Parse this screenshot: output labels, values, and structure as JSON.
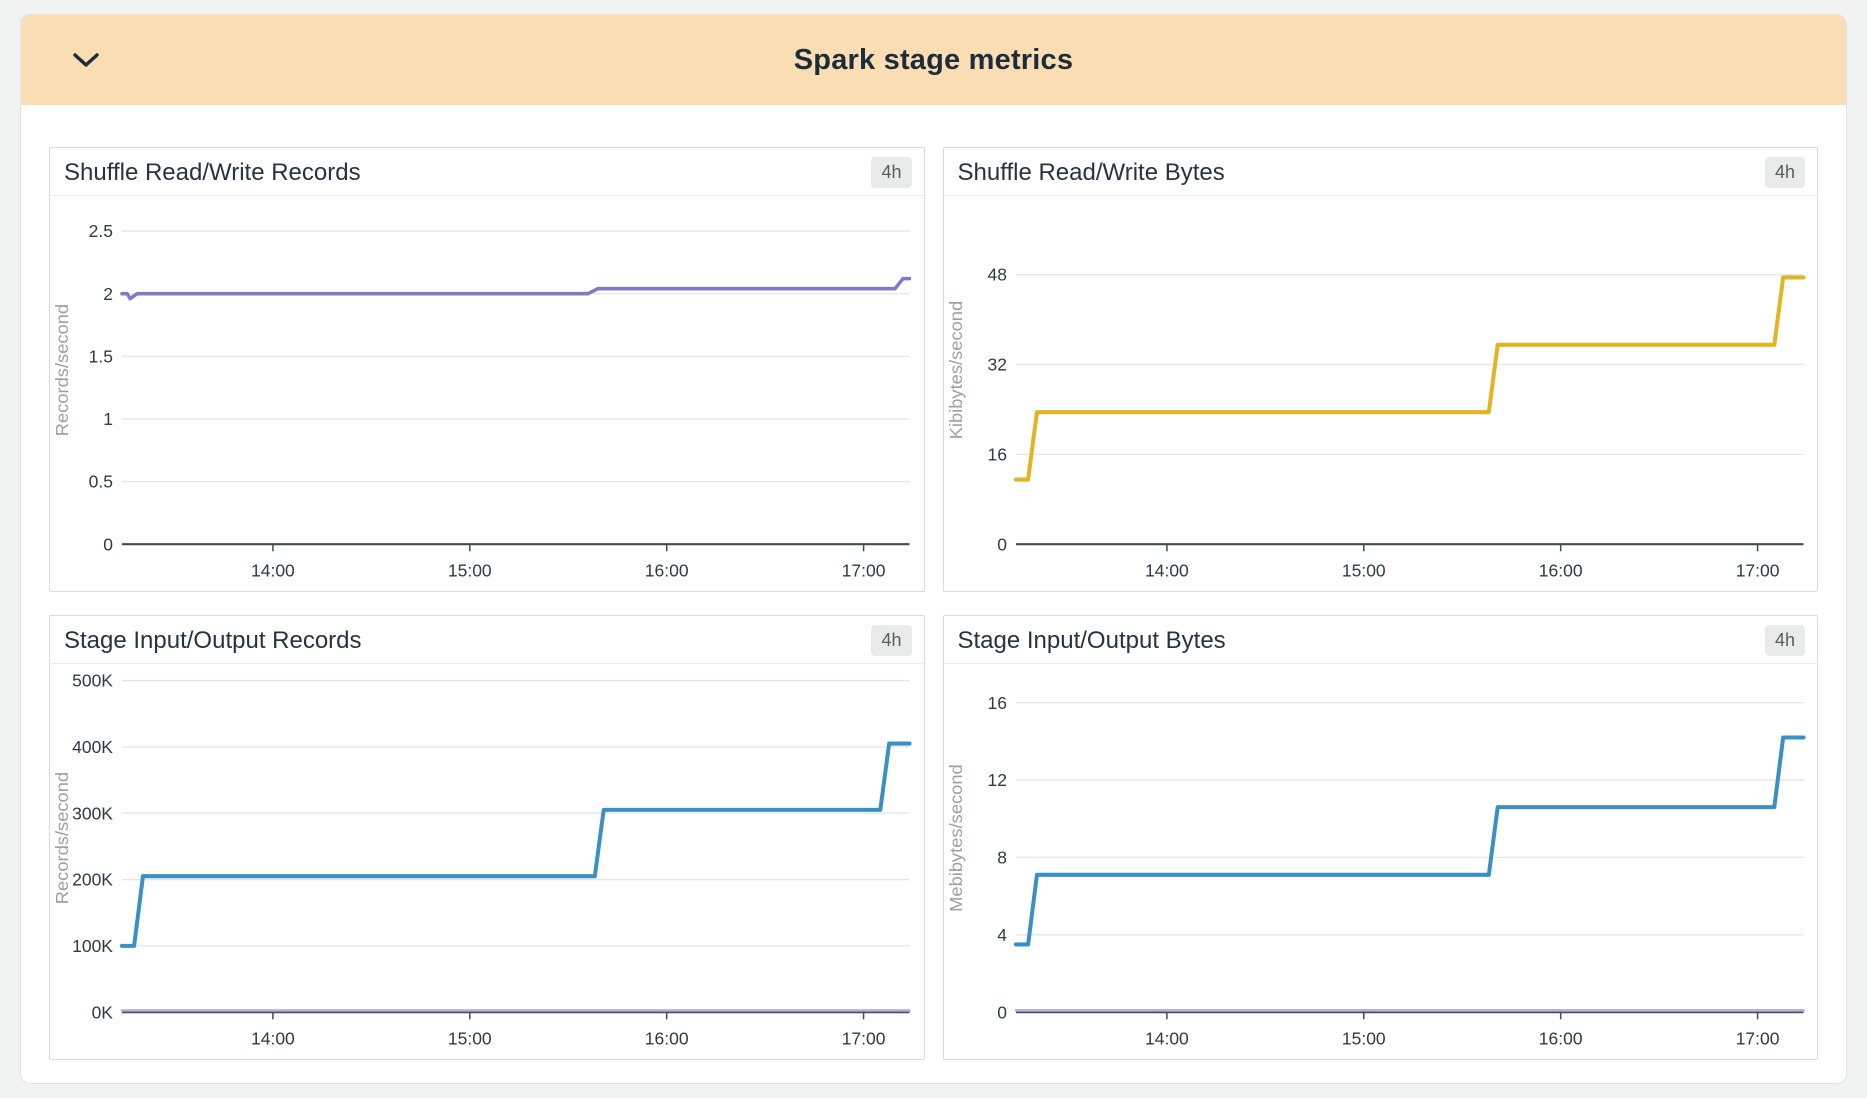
{
  "panel": {
    "title": "Spark stage metrics",
    "collapse_icon": "chevron-down"
  },
  "colors": {
    "page_bg": "#f1f3f3",
    "header_bg": "#fbddb4",
    "header_text": "#1d2c3b",
    "card_border": "#d9dadb",
    "grid_line": "#e5e6e7",
    "axis_line": "#3f4b55",
    "tick_text": "#2e3b45",
    "axis_label_text": "#9aa0a5",
    "badge_bg": "#e9eaea",
    "badge_text": "#565d63",
    "purple": "#8577c6",
    "light_purple": "#b9a8d8",
    "yellow": "#e2b420",
    "blue": "#3a90c5"
  },
  "chart_data": [
    {
      "type": "line",
      "title": "Shuffle Read/Write Records",
      "time_badge": "4h",
      "ylabel": "Records/second",
      "xlabel": "",
      "grid": true,
      "legend": "none",
      "x_domain_hours": [
        13.2333,
        17.2333
      ],
      "x_ticks": [
        {
          "value": 14,
          "label": "14:00"
        },
        {
          "value": 15,
          "label": "15:00"
        },
        {
          "value": 16,
          "label": "16:00"
        },
        {
          "value": 17,
          "label": "17:00"
        }
      ],
      "y_domain": [
        0,
        2.78
      ],
      "y_ticks": [
        {
          "value": 0,
          "label": "0"
        },
        {
          "value": 0.5,
          "label": "0.5"
        },
        {
          "value": 1,
          "label": "1"
        },
        {
          "value": 1.5,
          "label": "1.5"
        },
        {
          "value": 2,
          "label": "2"
        },
        {
          "value": 2.5,
          "label": "2.5"
        }
      ],
      "series": [
        {
          "name": "shuffle-records-rate",
          "color": "#8577c6",
          "width": 3.5,
          "points": [
            [
              13.2333,
              2.0
            ],
            [
              13.26,
              2.0
            ],
            [
              13.275,
              1.96
            ],
            [
              13.31,
              2.0
            ],
            [
              15.6,
              2.0
            ],
            [
              15.65,
              2.04
            ],
            [
              17.16,
              2.04
            ],
            [
              17.2,
              2.12
            ],
            [
              17.2333,
              2.12
            ]
          ]
        }
      ]
    },
    {
      "type": "line",
      "title": "Shuffle Read/Write Bytes",
      "time_badge": "4h",
      "ylabel": "Kibibytes/second",
      "xlabel": "",
      "grid": true,
      "legend": "none",
      "x_domain_hours": [
        13.2333,
        17.2333
      ],
      "x_ticks": [
        {
          "value": 14,
          "label": "14:00"
        },
        {
          "value": 15,
          "label": "15:00"
        },
        {
          "value": 16,
          "label": "16:00"
        },
        {
          "value": 17,
          "label": "17:00"
        }
      ],
      "y_domain": [
        0,
        62
      ],
      "y_ticks": [
        {
          "value": 0,
          "label": "0"
        },
        {
          "value": 16,
          "label": "16"
        },
        {
          "value": 32,
          "label": "32"
        },
        {
          "value": 48,
          "label": "48"
        }
      ],
      "series": [
        {
          "name": "shuffle-bytes-rate",
          "color": "#e2b420",
          "width": 4,
          "points": [
            [
              13.2333,
              11.5
            ],
            [
              13.295,
              11.5
            ],
            [
              13.34,
              23.5
            ],
            [
              15.635,
              23.5
            ],
            [
              15.68,
              35.5
            ],
            [
              17.085,
              35.5
            ],
            [
              17.13,
              47.5
            ],
            [
              17.2333,
              47.5
            ]
          ]
        }
      ]
    },
    {
      "type": "line",
      "title": "Stage Input/Output Records",
      "time_badge": "4h",
      "ylabel": "Records/second",
      "xlabel": "",
      "grid": true,
      "legend": "none",
      "x_domain_hours": [
        13.2333,
        17.2333
      ],
      "x_ticks": [
        {
          "value": 14,
          "label": "14:00"
        },
        {
          "value": 15,
          "label": "15:00"
        },
        {
          "value": 16,
          "label": "16:00"
        },
        {
          "value": 17,
          "label": "17:00"
        }
      ],
      "y_domain": [
        0,
        525000
      ],
      "y_ticks": [
        {
          "value": 0,
          "label": "0K"
        },
        {
          "value": 100000,
          "label": "100K"
        },
        {
          "value": 200000,
          "label": "200K"
        },
        {
          "value": 300000,
          "label": "300K"
        },
        {
          "value": 400000,
          "label": "400K"
        },
        {
          "value": 500000,
          "label": "500K"
        }
      ],
      "series": [
        {
          "name": "stage-input-records",
          "color": "#3a90c5",
          "width": 4,
          "points": [
            [
              13.2333,
              100000
            ],
            [
              13.295,
              100000
            ],
            [
              13.34,
              205000
            ],
            [
              15.635,
              205000
            ],
            [
              15.68,
              305000
            ],
            [
              17.085,
              305000
            ],
            [
              17.13,
              405000
            ],
            [
              17.2333,
              405000
            ]
          ]
        },
        {
          "name": "stage-output-records",
          "color": "#b9a8d8",
          "width": 2.5,
          "points": [
            [
              13.2333,
              2500
            ],
            [
              17.2333,
              2500
            ]
          ]
        }
      ]
    },
    {
      "type": "line",
      "title": "Stage Input/Output Bytes",
      "time_badge": "4h",
      "ylabel": "Mebibytes/second",
      "xlabel": "",
      "grid": true,
      "legend": "none",
      "x_domain_hours": [
        13.2333,
        17.2333
      ],
      "x_ticks": [
        {
          "value": 14,
          "label": "14:00"
        },
        {
          "value": 15,
          "label": "15:00"
        },
        {
          "value": 16,
          "label": "16:00"
        },
        {
          "value": 17,
          "label": "17:00"
        }
      ],
      "y_domain": [
        0,
        18
      ],
      "y_ticks": [
        {
          "value": 0,
          "label": "0"
        },
        {
          "value": 4,
          "label": "4"
        },
        {
          "value": 8,
          "label": "8"
        },
        {
          "value": 12,
          "label": "12"
        },
        {
          "value": 16,
          "label": "16"
        }
      ],
      "series": [
        {
          "name": "stage-input-bytes",
          "color": "#3a90c5",
          "width": 4,
          "points": [
            [
              13.2333,
              3.5
            ],
            [
              13.295,
              3.5
            ],
            [
              13.34,
              7.1
            ],
            [
              15.635,
              7.1
            ],
            [
              15.68,
              10.6
            ],
            [
              17.085,
              10.6
            ],
            [
              17.13,
              14.2
            ],
            [
              17.2333,
              14.2
            ]
          ]
        },
        {
          "name": "stage-output-bytes",
          "color": "#b9a8d8",
          "width": 2.5,
          "points": [
            [
              13.2333,
              0.09
            ],
            [
              17.2333,
              0.09
            ]
          ]
        }
      ]
    }
  ]
}
